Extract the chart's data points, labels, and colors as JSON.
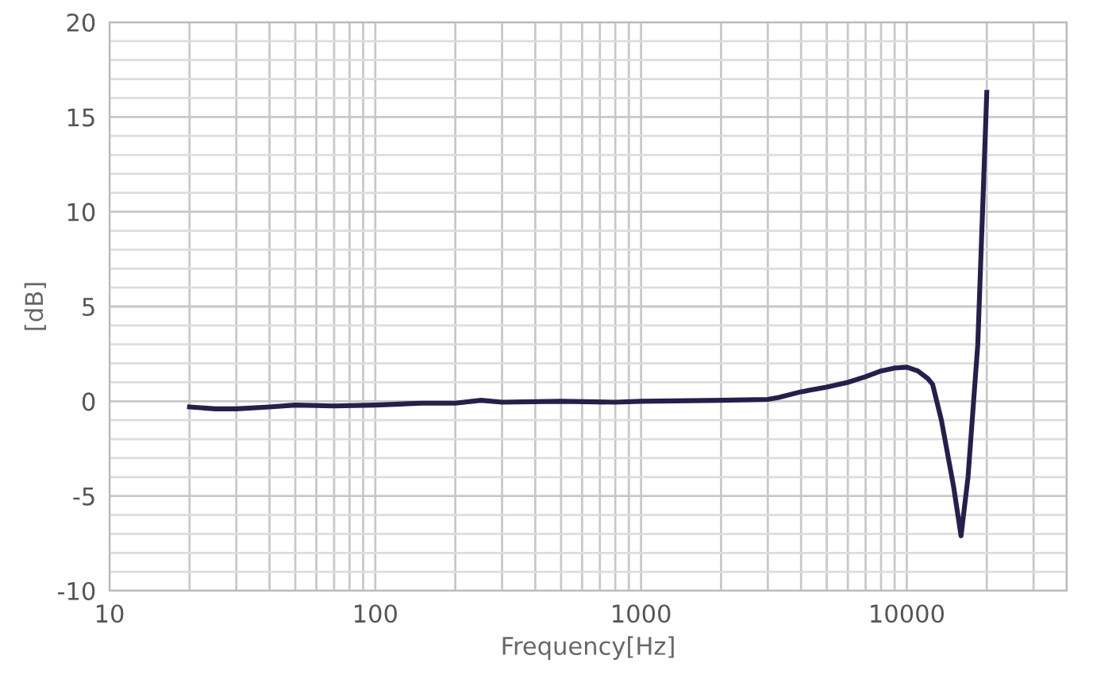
{
  "chart_data": {
    "type": "line",
    "xlabel": "Frequency[Hz]",
    "ylabel": "[dB]",
    "x": [
      20,
      25,
      30,
      40,
      50,
      70,
      100,
      150,
      200,
      250,
      300,
      500,
      800,
      1000,
      2000,
      3000,
      3300,
      4000,
      5000,
      6000,
      7000,
      8000,
      9000,
      10000,
      11000,
      12000,
      12500,
      13500,
      15000,
      16000,
      17000,
      18500,
      20000
    ],
    "series": [
      {
        "color": "#23214a",
        "values": [
          -0.3,
          -0.4,
          -0.4,
          -0.3,
          -0.2,
          -0.25,
          -0.2,
          -0.1,
          -0.1,
          0.05,
          -0.05,
          0,
          -0.05,
          0,
          0.05,
          0.1,
          0.2,
          0.5,
          0.75,
          1.0,
          1.3,
          1.6,
          1.75,
          1.8,
          1.6,
          1.2,
          0.9,
          -1,
          -4.5,
          -7.1,
          -4,
          3,
          16.3
        ]
      }
    ],
    "log": "x",
    "xlim": [
      10,
      40000
    ],
    "xticks": [
      10,
      100,
      1000,
      10000
    ],
    "ylim": [
      -10,
      20
    ],
    "yticks": [
      -10,
      -5,
      0,
      5,
      10,
      15,
      20
    ],
    "grid": true,
    "legend": false,
    "marker": "none",
    "line_style": "solid"
  }
}
